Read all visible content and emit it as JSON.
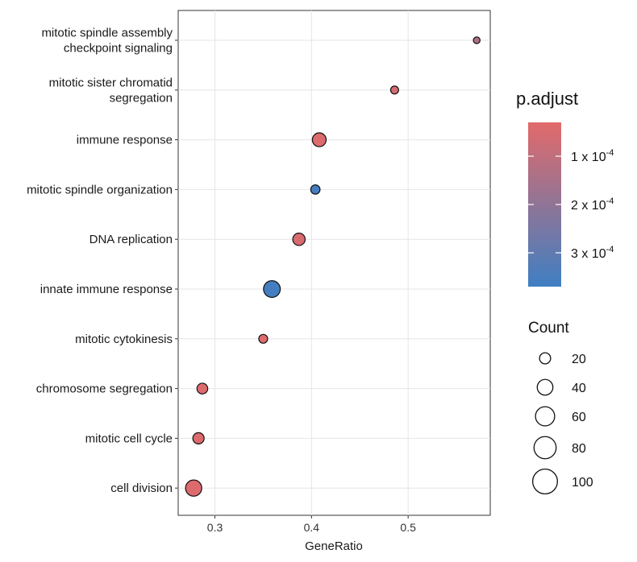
{
  "chart_data": {
    "type": "scatter",
    "subtype": "dot-plot",
    "title": "",
    "xlabel": "GeneRatio",
    "ylabel": "",
    "xlim": [
      0.262,
      0.585
    ],
    "x_ticks": [
      0.3,
      0.4,
      0.5
    ],
    "x_tick_labels": [
      "0.3",
      "0.4",
      "0.5"
    ],
    "grid": true,
    "categories": [
      "mitotic spindle assembly checkpoint signaling",
      "mitotic sister chromatid segregation",
      "immune response",
      "mitotic spindle organization",
      "DNA replication",
      "innate immune response",
      "mitotic cytokinesis",
      "chromosome segregation",
      "mitotic cell cycle",
      "cell division"
    ],
    "category_label_lines": [
      [
        "mitotic spindle assembly",
        "checkpoint signaling"
      ],
      [
        "mitotic sister chromatid",
        "segregation"
      ],
      [
        "immune response"
      ],
      [
        "mitotic spindle organization"
      ],
      [
        "DNA replication"
      ],
      [
        "innate immune response"
      ],
      [
        "mitotic cytokinesis"
      ],
      [
        "chromosome segregation"
      ],
      [
        "mitotic cell cycle"
      ],
      [
        "cell division"
      ]
    ],
    "points": [
      {
        "term": "mitotic spindle assembly checkpoint signaling",
        "gene_ratio": 0.571,
        "count": 12,
        "p_adjust": 0.00014
      },
      {
        "term": "mitotic sister chromatid segregation",
        "gene_ratio": 0.486,
        "count": 17,
        "p_adjust": 6e-05
      },
      {
        "term": "immune response",
        "gene_ratio": 0.408,
        "count": 51,
        "p_adjust": 4e-05
      },
      {
        "term": "mitotic spindle organization",
        "gene_ratio": 0.404,
        "count": 23,
        "p_adjust": 0.00036
      },
      {
        "term": "DNA replication",
        "gene_ratio": 0.387,
        "count": 41,
        "p_adjust": 5e-05
      },
      {
        "term": "innate immune response",
        "gene_ratio": 0.359,
        "count": 75,
        "p_adjust": 0.00036
      },
      {
        "term": "mitotic cytokinesis",
        "gene_ratio": 0.35,
        "count": 21,
        "p_adjust": 4e-05
      },
      {
        "term": "chromosome segregation",
        "gene_ratio": 0.287,
        "count": 31,
        "p_adjust": 4e-05
      },
      {
        "term": "mitotic cell cycle",
        "gene_ratio": 0.283,
        "count": 34,
        "p_adjust": 4e-05
      },
      {
        "term": "cell division",
        "gene_ratio": 0.278,
        "count": 70,
        "p_adjust": 4e-05
      }
    ],
    "color_legend": {
      "title": "p.adjust",
      "range": [
        3e-05,
        0.00037
      ],
      "low_color": "#E26A6A",
      "high_color": "#3F7FC3",
      "ticks": [
        {
          "value": 0.0001,
          "base": "1 x 10",
          "exp": "-4"
        },
        {
          "value": 0.0002,
          "base": "2 x 10",
          "exp": "-4"
        },
        {
          "value": 0.0003,
          "base": "3 x 10",
          "exp": "-4"
        }
      ]
    },
    "size_legend": {
      "title": "Count",
      "entries": [
        20,
        40,
        60,
        80,
        100
      ]
    }
  }
}
